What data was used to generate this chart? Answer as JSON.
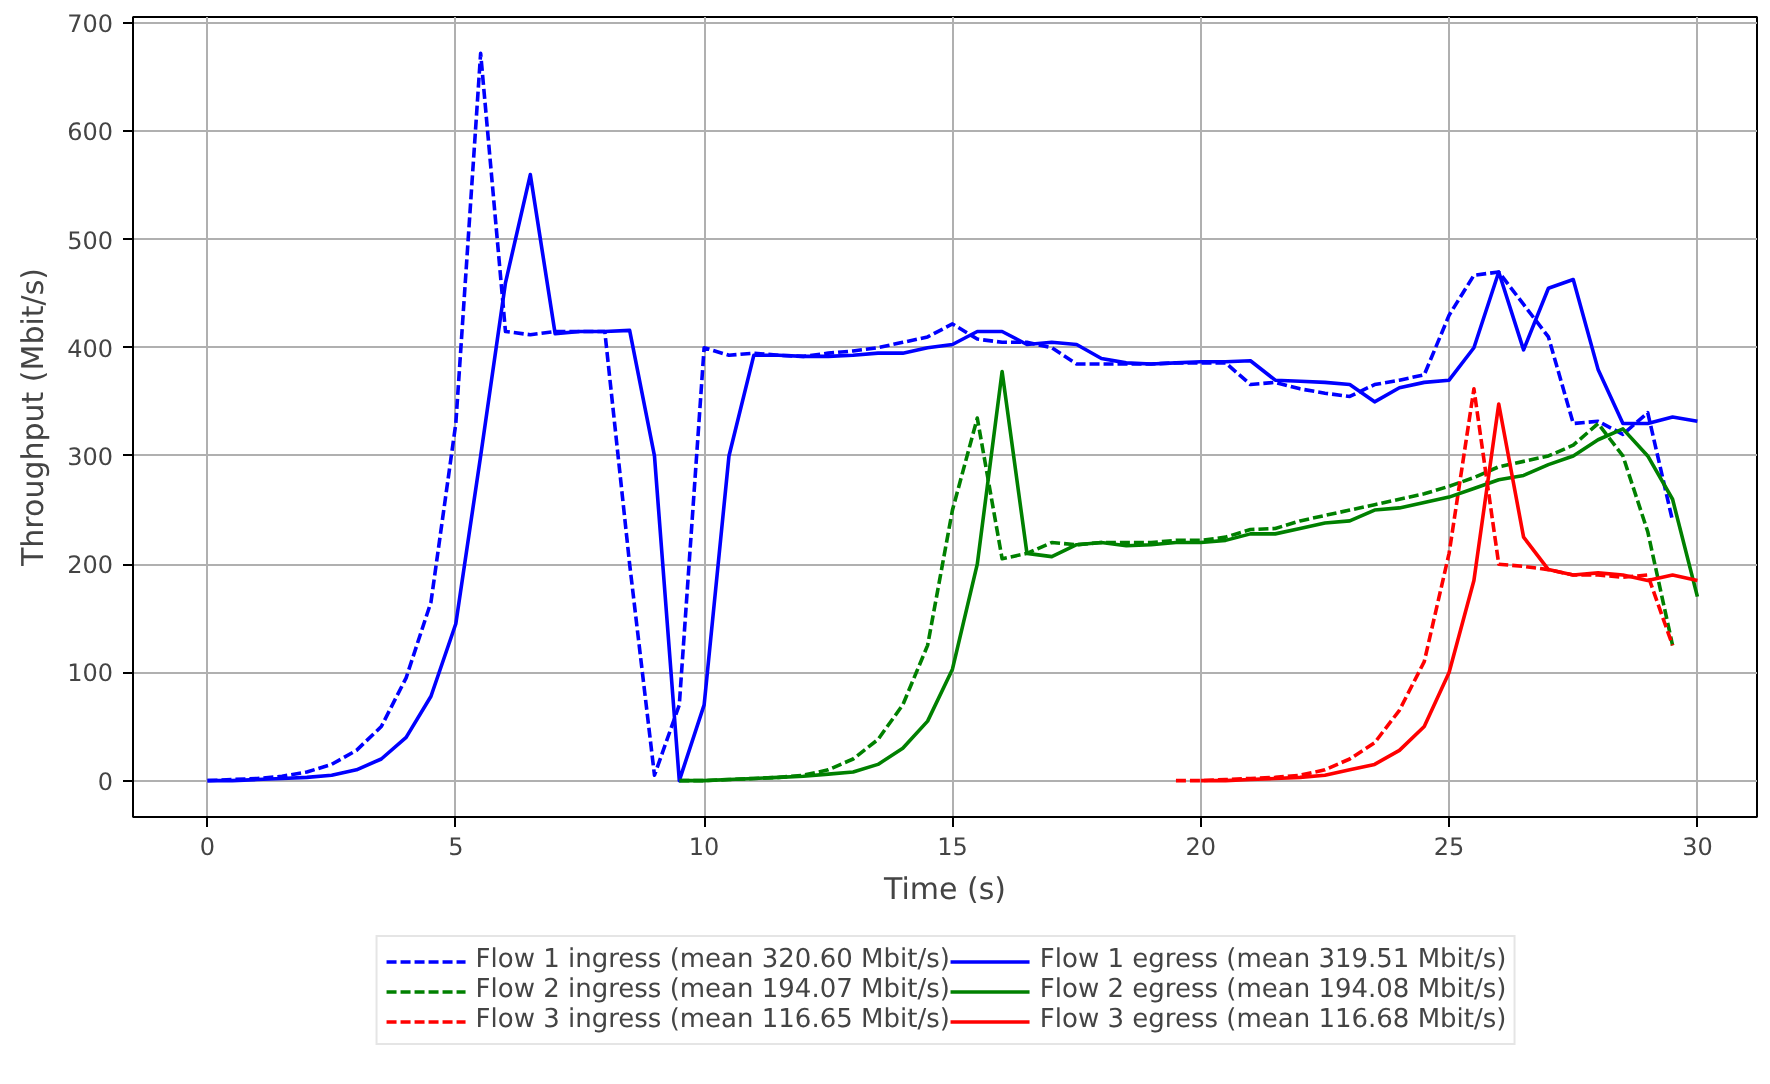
{
  "chart_data": {
    "type": "line",
    "xlabel": "Time (s)",
    "ylabel": "Throughput (Mbit/s)",
    "xlim": [
      -1.5,
      31.2
    ],
    "ylim": [
      -33.6,
      705.6
    ],
    "xticks": [
      0,
      5,
      10,
      15,
      20,
      25,
      30
    ],
    "yticks": [
      0,
      100,
      200,
      300,
      400,
      500,
      600,
      700
    ],
    "grid": true,
    "legend": "bottom",
    "marker": "none",
    "series": [
      {
        "name": "Flow 1 ingress (mean 320.60 Mbit/s)",
        "color": "#0000ff",
        "line_style": "dashed",
        "x": [
          0,
          0.5,
          1,
          1.5,
          2,
          2.5,
          3,
          3.5,
          4,
          4.5,
          5,
          5.5,
          6,
          6.5,
          7,
          7.5,
          8,
          8.5,
          9,
          9.5,
          10,
          10.5,
          11,
          11.5,
          12,
          12.5,
          13,
          13.5,
          14,
          14.5,
          15,
          15.5,
          16,
          16.5,
          17,
          17.5,
          18,
          18.5,
          19,
          19.5,
          20,
          20.5,
          21,
          21.5,
          22,
          22.5,
          23,
          23.5,
          24,
          24.5,
          25,
          25.5,
          26,
          26.5,
          27,
          27.5,
          28,
          28.5,
          29,
          29.5
        ],
        "values": [
          0,
          1,
          2,
          4,
          8,
          15,
          28,
          50,
          95,
          165,
          330,
          672,
          415,
          412,
          415,
          415,
          415,
          200,
          5,
          70,
          400,
          393,
          395,
          393,
          392,
          395,
          397,
          400,
          405,
          410,
          422,
          408,
          405,
          405,
          400,
          385,
          385,
          385,
          385,
          386,
          386,
          386,
          366,
          368,
          362,
          358,
          355,
          366,
          370,
          375,
          430,
          467,
          470,
          440,
          410,
          330,
          332,
          320,
          340,
          240
        ]
      },
      {
        "name": "Flow 2 ingress (mean 194.07 Mbit/s)",
        "color": "#008000",
        "line_style": "dashed",
        "x": [
          9.5,
          10,
          10.5,
          11,
          11.5,
          12,
          12.5,
          13,
          13.5,
          14,
          14.5,
          15,
          15.5,
          16,
          16.5,
          17,
          17.5,
          18,
          18.5,
          19,
          19.5,
          20,
          20.5,
          21,
          21.5,
          22,
          22.5,
          23,
          23.5,
          24,
          24.5,
          25,
          25.5,
          26,
          26.5,
          27,
          27.5,
          28,
          28.5,
          29,
          29.5
        ],
        "values": [
          0,
          0,
          1,
          2,
          3,
          5,
          10,
          20,
          38,
          70,
          125,
          250,
          335,
          205,
          210,
          220,
          218,
          220,
          220,
          220,
          222,
          222,
          225,
          232,
          233,
          240,
          245,
          250,
          255,
          260,
          265,
          272,
          280,
          290,
          295,
          300,
          310,
          330,
          300,
          230,
          125
        ]
      },
      {
        "name": "Flow 3 ingress (mean 116.65 Mbit/s)",
        "color": "#ff0000",
        "line_style": "dashed",
        "x": [
          19.5,
          20,
          20.5,
          21,
          21.5,
          22,
          22.5,
          23,
          23.5,
          24,
          24.5,
          25,
          25.5,
          26,
          26.5,
          27,
          27.5,
          28,
          28.5,
          29,
          29.5
        ],
        "values": [
          0,
          0,
          1,
          2,
          3,
          5,
          10,
          20,
          35,
          65,
          110,
          210,
          362,
          200,
          198,
          195,
          190,
          190,
          188,
          190,
          125
        ]
      },
      {
        "name": "Flow 1 egress (mean 319.51 Mbit/s)",
        "color": "#0000ff",
        "line_style": "solid",
        "x": [
          0,
          0.5,
          1,
          1.5,
          2,
          2.5,
          3,
          3.5,
          4,
          4.5,
          5,
          5.5,
          6,
          6.5,
          7,
          7.5,
          8,
          8.5,
          9,
          9.5,
          10,
          10.5,
          11,
          11.5,
          12,
          12.5,
          13,
          13.5,
          14,
          14.5,
          15,
          15.5,
          16,
          16.5,
          17,
          17.5,
          18,
          18.5,
          19,
          19.5,
          20,
          20.5,
          21,
          21.5,
          22,
          22.5,
          23,
          23.5,
          24,
          24.5,
          25,
          25.5,
          26,
          26.5,
          27,
          27.5,
          28,
          28.5,
          29,
          29.5,
          30
        ],
        "values": [
          0,
          0,
          1,
          2,
          3,
          5,
          10,
          20,
          40,
          78,
          145,
          300,
          460,
          560,
          413,
          415,
          415,
          416,
          300,
          0,
          70,
          300,
          393,
          393,
          392,
          392,
          393,
          395,
          395,
          400,
          403,
          415,
          415,
          403,
          405,
          403,
          390,
          386,
          385,
          386,
          387,
          387,
          388,
          370,
          369,
          368,
          366,
          350,
          363,
          368,
          370,
          400,
          470,
          398,
          455,
          463,
          380,
          330,
          330,
          336,
          332
        ]
      },
      {
        "name": "Flow 2 egress (mean 194.08 Mbit/s)",
        "color": "#008000",
        "line_style": "solid",
        "x": [
          9.5,
          10,
          10.5,
          11,
          11.5,
          12,
          12.5,
          13,
          13.5,
          14,
          14.5,
          15,
          15.5,
          16,
          16.5,
          17,
          17.5,
          18,
          18.5,
          19,
          19.5,
          20,
          20.5,
          21,
          21.5,
          22,
          22.5,
          23,
          23.5,
          24,
          24.5,
          25,
          25.5,
          26,
          26.5,
          27,
          27.5,
          28,
          28.5,
          29,
          29.5,
          30
        ],
        "values": [
          0,
          0,
          1,
          2,
          3,
          4,
          6,
          8,
          15,
          30,
          55,
          103,
          200,
          378,
          210,
          207,
          218,
          220,
          217,
          218,
          220,
          220,
          222,
          228,
          228,
          233,
          238,
          240,
          250,
          252,
          257,
          262,
          270,
          278,
          282,
          292,
          300,
          315,
          325,
          300,
          260,
          170
        ]
      },
      {
        "name": "Flow 3 egress (mean 116.68 Mbit/s)",
        "color": "#ff0000",
        "line_style": "solid",
        "x": [
          20,
          20.5,
          21,
          21.5,
          22,
          22.5,
          23,
          23.5,
          24,
          24.5,
          25,
          25.5,
          26,
          26.5,
          27,
          27.5,
          28,
          28.5,
          29,
          29.5,
          30
        ],
        "values": [
          0,
          0,
          1,
          2,
          3,
          5,
          10,
          15,
          28,
          50,
          100,
          185,
          348,
          225,
          195,
          190,
          192,
          190,
          185,
          190,
          185
        ]
      }
    ]
  }
}
